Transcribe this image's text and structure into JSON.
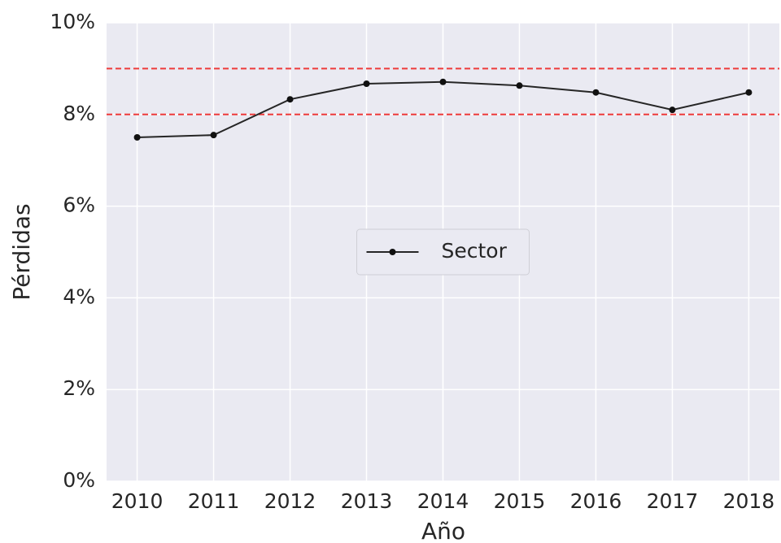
{
  "chart_data": {
    "type": "line",
    "x_label": "Año",
    "y_label": "Pérdidas",
    "x": [
      2010,
      2011,
      2012,
      2013,
      2014,
      2015,
      2016,
      2017,
      2018
    ],
    "series": [
      {
        "name": "Sector",
        "color": "#262626",
        "values": [
          7.5,
          7.55,
          8.33,
          8.67,
          8.71,
          8.63,
          8.48,
          8.1,
          8.48
        ]
      }
    ],
    "xlim": [
      2009.6,
      2018.4
    ],
    "xticks": [
      2010,
      2011,
      2012,
      2013,
      2014,
      2015,
      2016,
      2017,
      2018
    ],
    "ylim": [
      0,
      10
    ],
    "yticks": [
      {
        "value": 0,
        "label": "0%"
      },
      {
        "value": 2,
        "label": "2%"
      },
      {
        "value": 4,
        "label": "4%"
      },
      {
        "value": 6,
        "label": "6%"
      },
      {
        "value": 8,
        "label": "8%"
      },
      {
        "value": 10,
        "label": "10%"
      }
    ],
    "grid": true,
    "background": "#eaeaf2",
    "reference_lines": [
      8,
      9
    ],
    "reference_line_color": "#ee3b3b",
    "legend_position": "center"
  }
}
